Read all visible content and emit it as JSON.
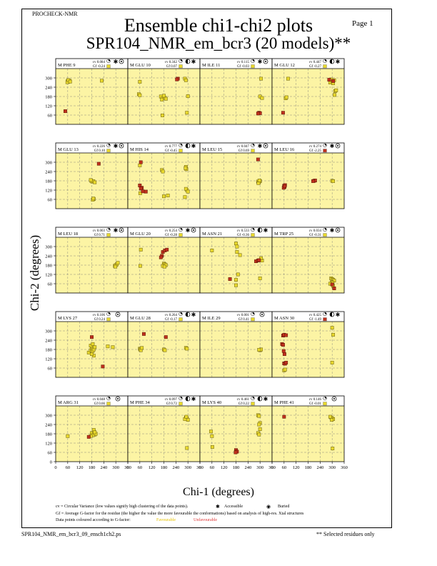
{
  "header": {
    "program": "PROCHECK-NMR",
    "page": "Page  1",
    "title_line1": "Ensemble chi1-chi2 plots",
    "title_line2": "SPR104_NMR_em_bcr3 (20 models)**"
  },
  "axes": {
    "xlabel": "Chi-1 (degrees)",
    "ylabel": "Chi-2 (degrees)",
    "xlim": [
      0,
      360
    ],
    "ylim": [
      0,
      360
    ],
    "x_ticks": [
      0,
      60,
      120,
      180,
      240,
      300,
      360
    ],
    "y_ticks": [
      0,
      60,
      120,
      180,
      240,
      300
    ]
  },
  "legend": {
    "cv_note": "cv = Circular Variance (low values signify high clustering of the data points).",
    "accessible": "Accessible",
    "buried": "Buried",
    "gf_note": "Gf = Average G-factor for the residue (the higher the value the more favourable the conformations) based on analysis of high-res. Xtal structures",
    "colour_note": "Data points coloured according to G-factor:",
    "favourable": "Favourable",
    "unfavourable": "Unfavourable"
  },
  "footer": {
    "filename": "SPR104_NMR_em_bcr3_09_ensch1ch2.ps",
    "note": "** Selected residues only"
  },
  "colors": {
    "panel_bg": "#fcf4a4",
    "favourable": "#e8d82c",
    "unfavourable": "#c0301c",
    "grid": "#777777"
  },
  "chart_data": {
    "type": "scatter",
    "xlabel": "Chi-1 (degrees)",
    "ylabel": "Chi-2 (degrees)",
    "xlim": [
      0,
      360
    ],
    "ylim": [
      0,
      360
    ],
    "grid": true,
    "panels": [
      {
        "label": "M PHE 9",
        "cv": "cv 0.084",
        "gf": "Gf -0.24",
        "access": "both",
        "fav": [
          [
            60,
            280
          ],
          [
            62,
            275
          ],
          [
            64,
            283
          ],
          [
            67,
            278
          ],
          [
            70,
            281
          ],
          [
            58,
            272
          ],
          [
            63,
            286
          ],
          [
            72,
            276
          ],
          [
            230,
            282
          ]
        ],
        "unfav": [
          [
            48,
            85
          ]
        ]
      },
      {
        "label": "M GLU 10",
        "cv": "cv 0.342",
        "gf": "Gf 0.07",
        "access": "half",
        "fav": [
          [
            60,
            275
          ],
          [
            55,
            195
          ],
          [
            60,
            188
          ],
          [
            165,
            180
          ],
          [
            175,
            170
          ],
          [
            185,
            172
          ],
          [
            170,
            160
          ],
          [
            180,
            185
          ],
          [
            190,
            165
          ],
          [
            173,
            58
          ],
          [
            285,
            295
          ],
          [
            290,
            285
          ],
          [
            300,
            182
          ],
          [
            295,
            75
          ]
        ],
        "unfav": [
          [
            250,
            295
          ],
          [
            245,
            290
          ]
        ]
      },
      {
        "label": "M ILE 11",
        "cv": "cv 0.115",
        "gf": "Gf -0.03",
        "access": "both",
        "fav": [
          [
            305,
            295
          ],
          [
            300,
            180
          ],
          [
            310,
            170
          ]
        ],
        "unfav": [
          [
            295,
            75
          ],
          [
            300,
            72
          ],
          [
            290,
            70
          ]
        ]
      },
      {
        "label": "M GLU 12",
        "cv": "cv 0.447",
        "gf": "Gf -0.27",
        "access": "half",
        "fav": [
          [
            290,
            270
          ],
          [
            300,
            278
          ],
          [
            305,
            265
          ],
          [
            310,
            285
          ],
          [
            295,
            290
          ],
          [
            315,
            215
          ],
          [
            320,
            220
          ],
          [
            312,
            190
          ],
          [
            80,
            295
          ],
          [
            68,
            168
          ],
          [
            72,
            175
          ]
        ],
        "unfav": [
          [
            55,
            75
          ],
          [
            285,
            288
          ],
          [
            305,
            280
          ]
        ]
      },
      {
        "label": "M GLU 13",
        "cv": "cv 0.226",
        "gf": "Gf 0.10",
        "access": "both",
        "fav": [
          [
            178,
            180
          ],
          [
            182,
            175
          ],
          [
            188,
            178
          ],
          [
            175,
            185
          ],
          [
            195,
            170
          ],
          [
            190,
            62
          ],
          [
            185,
            58
          ],
          [
            188,
            66
          ]
        ],
        "unfav": [
          [
            215,
            290
          ]
        ]
      },
      {
        "label": "M HIS 14",
        "cv": "cv 0.777",
        "gf": "Gf -0.45",
        "access": "half",
        "fav": [
          [
            60,
            280
          ],
          [
            170,
            250
          ],
          [
            175,
            240
          ],
          [
            290,
            270
          ],
          [
            292,
            255
          ],
          [
            288,
            262
          ],
          [
            295,
            120
          ],
          [
            290,
            128
          ],
          [
            300,
            110
          ],
          [
            180,
            80
          ],
          [
            200,
            85
          ],
          [
            285,
            75
          ],
          [
            62,
            100
          ]
        ],
        "unfav": [
          [
            65,
            300
          ],
          [
            60,
            150
          ],
          [
            70,
            135
          ],
          [
            65,
            130
          ],
          [
            75,
            112
          ],
          [
            90,
            110
          ]
        ]
      },
      {
        "label": "M LEU 15",
        "cv": "cv 0.047",
        "gf": "Gf 0.69",
        "access": "both",
        "fav": [
          [
            290,
            175
          ],
          [
            295,
            170
          ],
          [
            300,
            178
          ],
          [
            292,
            165
          ],
          [
            297,
            182
          ]
        ],
        "unfav": [
          [
            290,
            318
          ]
        ]
      },
      {
        "label": "M LEU 16",
        "cv": "cv 0.274",
        "gf": "Gf -2.25",
        "access": "both",
        "fav": [
          [
            300,
            180
          ],
          [
            305,
            178
          ]
        ],
        "unfav": [
          [
            60,
            148
          ],
          [
            62,
            140
          ],
          [
            65,
            152
          ],
          [
            58,
            135
          ],
          [
            63,
            145
          ],
          [
            210,
            180
          ],
          [
            215,
            182
          ],
          [
            205,
            178
          ]
        ]
      },
      {
        "label": "M LEU 18",
        "cv": "cv 0.003",
        "gf": "Gf 0.71",
        "access": "both",
        "fav": [
          [
            295,
            175
          ],
          [
            300,
            180
          ],
          [
            305,
            185
          ],
          [
            298,
            170
          ],
          [
            310,
            195
          ]
        ],
        "unfav": []
      },
      {
        "label": "M GLU 20",
        "cv": "cv 0.254",
        "gf": "Gf -0.28",
        "access": "both",
        "fav": [
          [
            65,
            280
          ],
          [
            62,
            175
          ],
          [
            180,
            190
          ],
          [
            185,
            185
          ],
          [
            175,
            175
          ],
          [
            190,
            180
          ],
          [
            183,
            170
          ]
        ],
        "unfav": [
          [
            175,
            265
          ],
          [
            170,
            240
          ],
          [
            165,
            230
          ],
          [
            185,
            275
          ],
          [
            195,
            280
          ]
        ]
      },
      {
        "label": "M ASN 21",
        "cv": "cv 0.533",
        "gf": "Gf -0.36",
        "access": "half",
        "fav": [
          [
            60,
            275
          ],
          [
            180,
            320
          ],
          [
            185,
            300
          ],
          [
            185,
            265
          ],
          [
            200,
            245
          ],
          [
            190,
            120
          ],
          [
            180,
            85
          ],
          [
            180,
            50
          ],
          [
            300,
            95
          ],
          [
            310,
            210
          ],
          [
            305,
            225
          ]
        ],
        "unfav": [
          [
            150,
            90
          ],
          [
            280,
            205
          ],
          [
            290,
            210
          ],
          [
            295,
            212
          ]
        ]
      },
      {
        "label": "M TRP 25",
        "cv": "cv 0.034",
        "gf": "Gf -0.31",
        "access": "both",
        "fav": [
          [
            295,
            95
          ],
          [
            300,
            90
          ],
          [
            305,
            85
          ],
          [
            310,
            80
          ],
          [
            298,
            70
          ],
          [
            302,
            65
          ],
          [
            290,
            60
          ],
          [
            305,
            45
          ]
        ],
        "unfav": [
          [
            300,
            55
          ],
          [
            310,
            30
          ]
        ]
      },
      {
        "label": "M LYS 27",
        "cv": "cv 0.106",
        "gf": "Gf 0.24",
        "access": "acc",
        "fav": [
          [
            165,
            160
          ],
          [
            175,
            175
          ],
          [
            180,
            185
          ],
          [
            185,
            195
          ],
          [
            175,
            205
          ],
          [
            185,
            215
          ],
          [
            190,
            140
          ],
          [
            180,
            150
          ],
          [
            185,
            170
          ],
          [
            190,
            180
          ],
          [
            195,
            195
          ],
          [
            260,
            200
          ],
          [
            285,
            195
          ]
        ],
        "unfav": [
          [
            180,
            260
          ],
          [
            235,
            70
          ]
        ]
      },
      {
        "label": "M GLU 28",
        "cv": "cv 0.264",
        "gf": "Gf -0.17",
        "access": "half",
        "fav": [
          [
            60,
            185
          ],
          [
            62,
            180
          ],
          [
            65,
            175
          ],
          [
            70,
            190
          ],
          [
            180,
            180
          ],
          [
            185,
            175
          ],
          [
            290,
            190
          ],
          [
            295,
            185
          ]
        ],
        "unfav": [
          [
            80,
            280
          ],
          [
            190,
            260
          ]
        ]
      },
      {
        "label": "M ILE 29",
        "cv": "cv 0.001",
        "gf": "Gf 0.41",
        "access": "acc",
        "fav": [
          [
            300,
            175
          ],
          [
            305,
            180
          ],
          [
            295,
            178
          ]
        ],
        "unfav": []
      },
      {
        "label": "M ASN 30",
        "cv": "cv 0.425",
        "gf": "Gf -1.49",
        "access": "half",
        "fav": [
          [
            300,
            320
          ],
          [
            305,
            275
          ],
          [
            300,
            95
          ],
          [
            60,
            45
          ],
          [
            65,
            50
          ]
        ],
        "unfav": [
          [
            55,
            270
          ],
          [
            60,
            275
          ],
          [
            70,
            272
          ],
          [
            50,
            215
          ],
          [
            55,
            210
          ],
          [
            60,
            90
          ],
          [
            65,
            88
          ],
          [
            70,
            95
          ],
          [
            58,
            170
          ],
          [
            62,
            150
          ]
        ]
      },
      {
        "label": "M ARG 31",
        "cv": "cv 0.048",
        "gf": "Gf 0.66",
        "access": "acc",
        "fav": [
          [
            180,
            185
          ],
          [
            190,
            195
          ],
          [
            195,
            175
          ],
          [
            185,
            170
          ],
          [
            200,
            180
          ],
          [
            175,
            165
          ],
          [
            60,
            165
          ],
          [
            190,
            205
          ],
          [
            195,
            190
          ]
        ],
        "unfav": [
          [
            165,
            160
          ]
        ]
      },
      {
        "label": "M PHE 34",
        "cv": "cv 0.097",
        "gf": "Gf 0.72",
        "access": "half",
        "fav": [
          [
            290,
            285
          ],
          [
            295,
            280
          ],
          [
            300,
            270
          ],
          [
            285,
            275
          ],
          [
            292,
            290
          ],
          [
            295,
            88
          ]
        ],
        "unfav": []
      },
      {
        "label": "M LYS 40",
        "cv": "cv 0.461",
        "gf": "Gf 0.22",
        "access": "half",
        "fav": [
          [
            55,
            195
          ],
          [
            60,
            165
          ],
          [
            290,
            300
          ],
          [
            295,
            295
          ],
          [
            300,
            250
          ],
          [
            295,
            240
          ],
          [
            300,
            210
          ],
          [
            290,
            185
          ],
          [
            295,
            175
          ],
          [
            62,
            95
          ]
        ],
        "unfav": [
          [
            180,
            75
          ],
          [
            185,
            65
          ],
          [
            178,
            60
          ]
        ]
      },
      {
        "label": "M PHE 41",
        "cv": "cv 0.146",
        "gf": "Gf -0.01",
        "access": "acc",
        "fav": [
          [
            295,
            285
          ],
          [
            300,
            280
          ],
          [
            305,
            275
          ],
          [
            298,
            270
          ],
          [
            290,
            290
          ],
          [
            302,
            85
          ]
        ],
        "unfav": [
          [
            60,
            290
          ]
        ]
      }
    ]
  }
}
